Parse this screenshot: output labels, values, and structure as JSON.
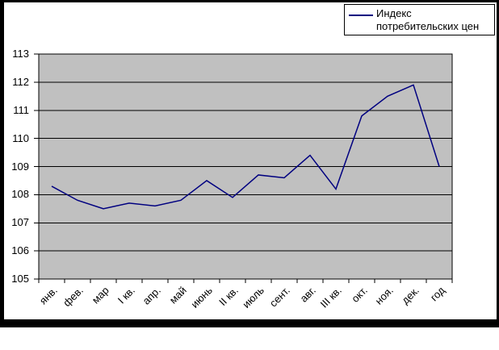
{
  "chart_data": {
    "type": "line",
    "title": "",
    "categories": [
      "янв.",
      "фев.",
      "мар",
      "I кв.",
      "апр.",
      "май",
      "июнь",
      "II кв.",
      "июль",
      "сент.",
      "авг.",
      "III кв.",
      "окт.",
      "ноя.",
      "дек.",
      "год"
    ],
    "series": [
      {
        "name": "Индекс потребительских цен",
        "values": [
          108.3,
          107.8,
          107.5,
          107.7,
          107.6,
          107.8,
          108.5,
          107.9,
          108.7,
          108.6,
          109.4,
          108.2,
          110.8,
          111.5,
          111.9,
          109.0
        ]
      }
    ],
    "xlabel": "",
    "ylabel": "",
    "ylim": [
      105,
      113
    ],
    "yticks": [
      105,
      106,
      107,
      108,
      109,
      110,
      111,
      112,
      113
    ],
    "grid": "horizontal",
    "legend_position": "top-right",
    "colors": {
      "line": "#000080",
      "plot_background": "#c0c0c0",
      "grid": "#000000",
      "frame": "#000000",
      "chart_background": "#ffffff"
    }
  }
}
